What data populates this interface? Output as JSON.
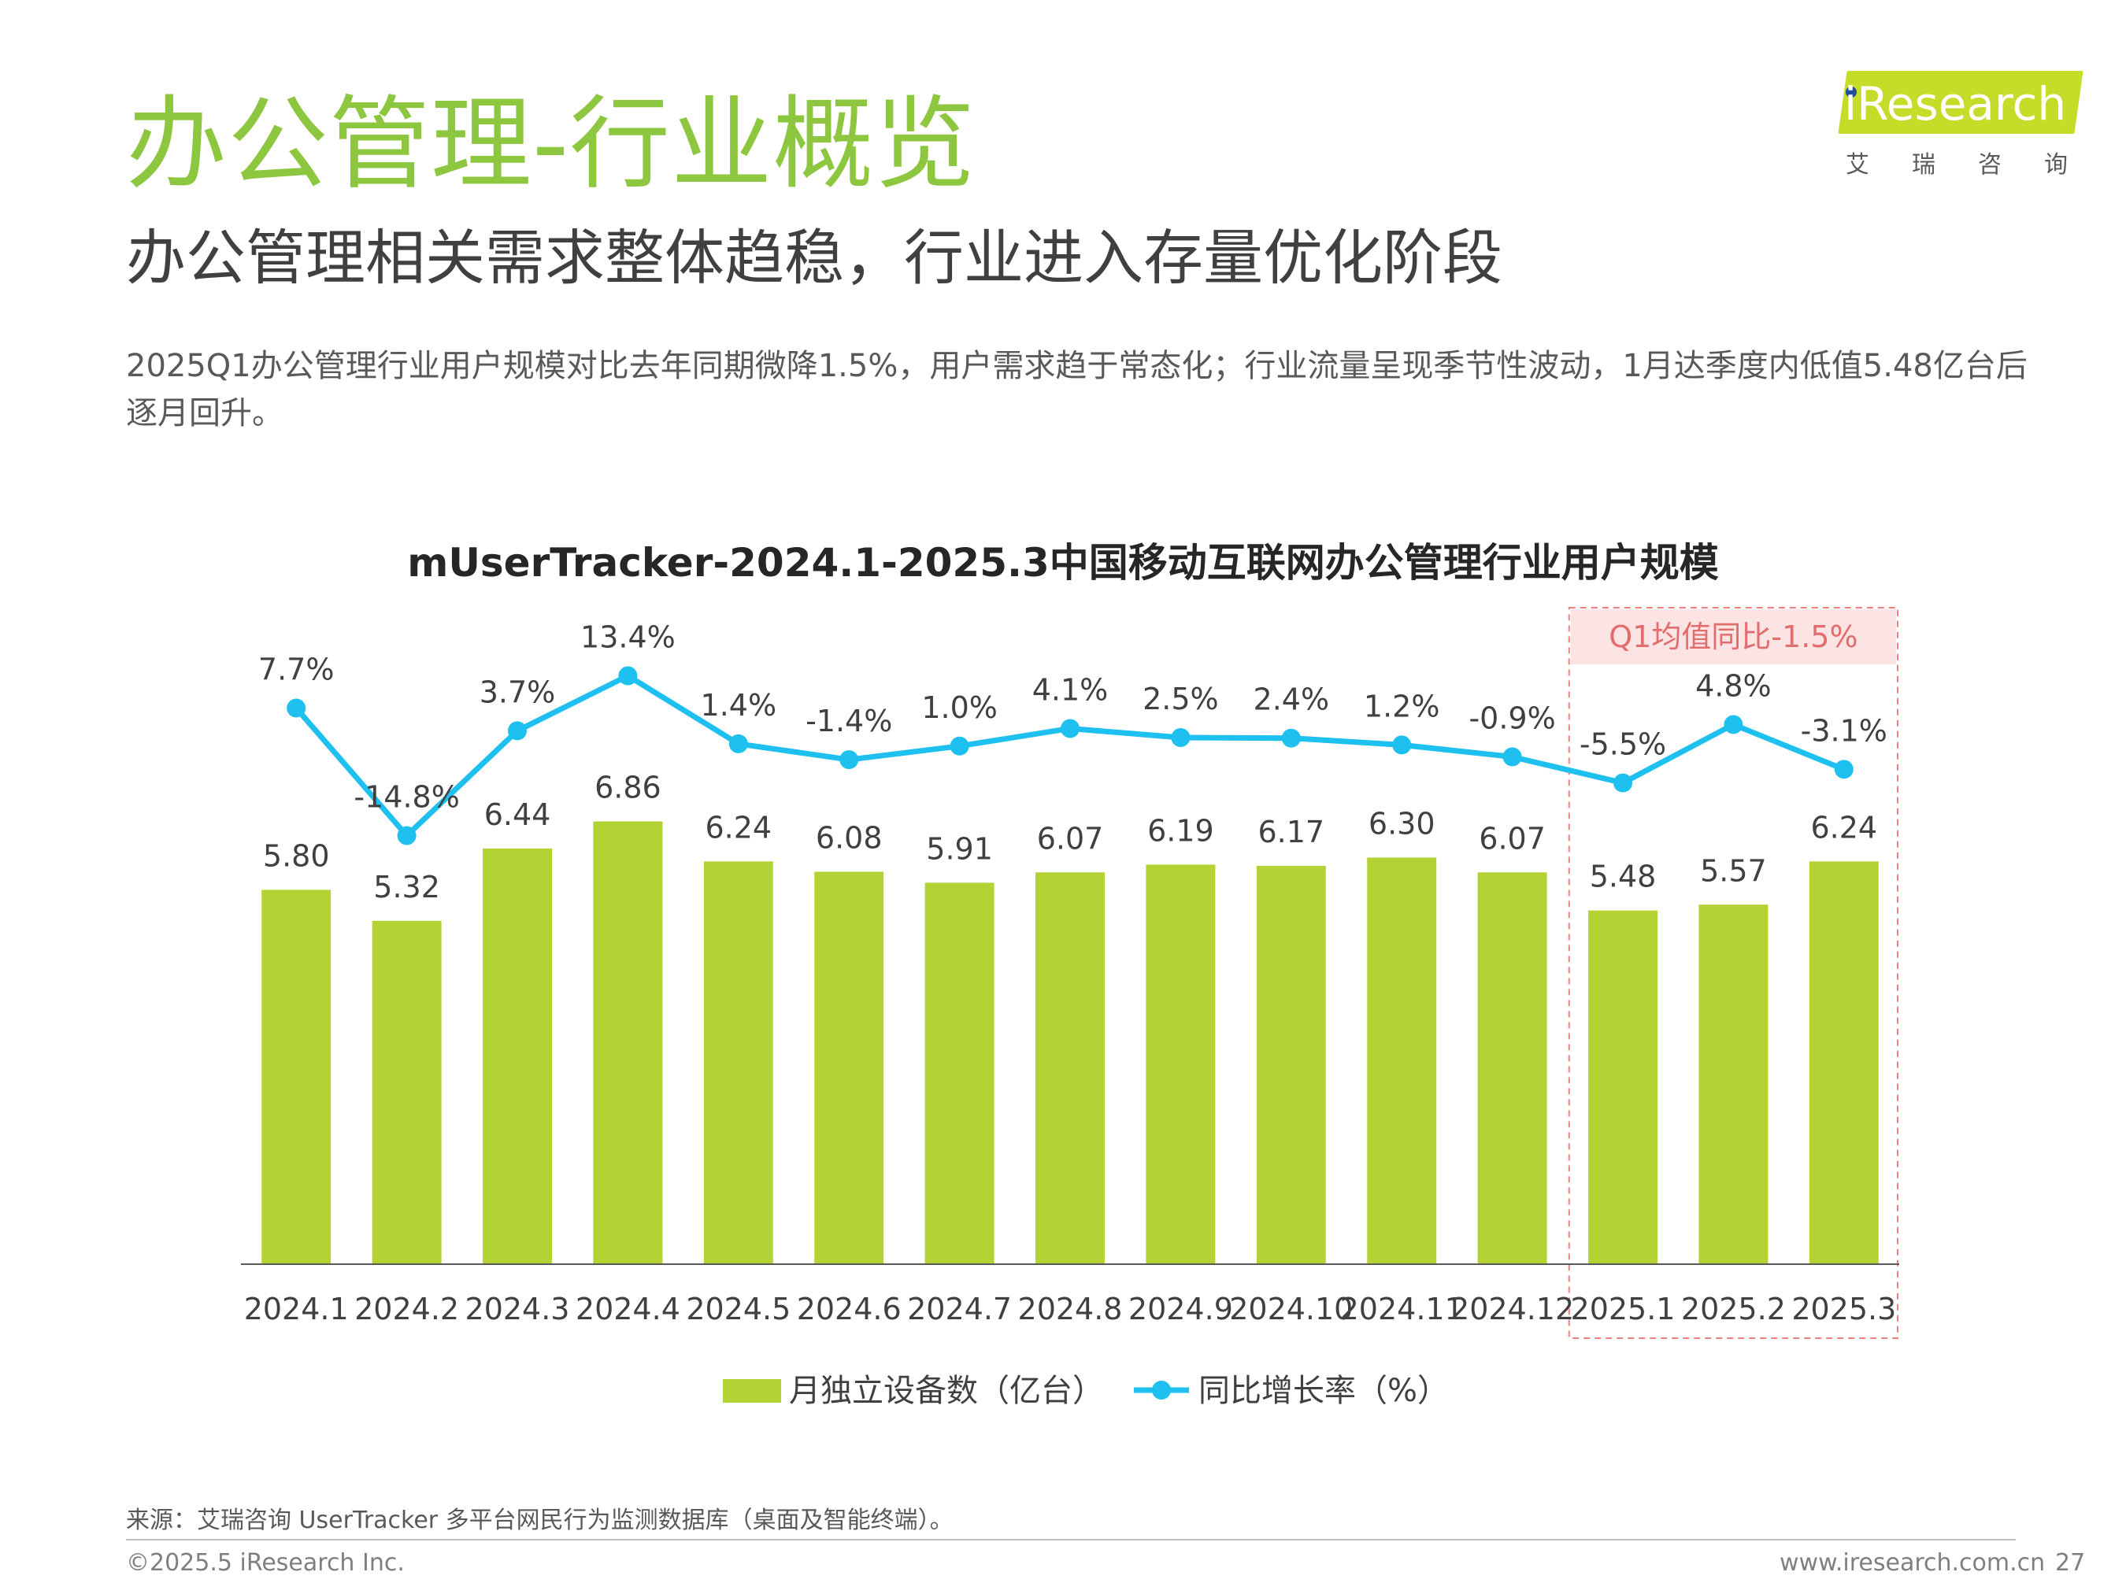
{
  "header": {
    "title": "办公管理-行业概览",
    "subtitle": "办公管理相关需求整体趋稳，行业进入存量优化阶段",
    "summary": "2025Q1办公管理行业用户规模对比去年同期微降1.5%，用户需求趋于常态化；行业流量呈现季节性波动，1月达季度内低值5.48亿台后逐月回升。"
  },
  "logo": {
    "brand": "iResearch",
    "chinese": "艾瑞咨询"
  },
  "chart_data": {
    "type": "bar",
    "title": "mUserTracker-2024.1-2025.3中国移动互联网办公管理行业用户规模",
    "categories": [
      "2024.1",
      "2024.2",
      "2024.3",
      "2024.4",
      "2024.5",
      "2024.6",
      "2024.7",
      "2024.8",
      "2024.9",
      "2024.10",
      "2024.11",
      "2024.12",
      "2025.1",
      "2025.2",
      "2025.3"
    ],
    "series": [
      {
        "name": "月独立设备数（亿台）",
        "type": "bar",
        "color": "#b3d335",
        "values": [
          5.8,
          5.32,
          6.44,
          6.86,
          6.24,
          6.08,
          5.91,
          6.07,
          6.19,
          6.17,
          6.3,
          6.07,
          5.48,
          5.57,
          6.24
        ],
        "labels": [
          "5.80",
          "5.32",
          "6.44",
          "6.86",
          "6.24",
          "6.08",
          "5.91",
          "6.07",
          "6.19",
          "6.17",
          "6.30",
          "6.07",
          "5.48",
          "5.57",
          "6.24"
        ]
      },
      {
        "name": "同比增长率（%）",
        "type": "line",
        "color": "#1ec0ef",
        "values": [
          7.7,
          -14.8,
          3.7,
          13.4,
          1.4,
          -1.4,
          1.0,
          4.1,
          2.5,
          2.4,
          1.2,
          -0.9,
          -5.5,
          4.8,
          -3.1
        ],
        "labels": [
          "7.7%",
          "-14.8%",
          "3.7%",
          "13.4%",
          "1.4%",
          "-1.4%",
          "1.0%",
          "4.1%",
          "2.5%",
          "2.4%",
          "1.2%",
          "-0.9%",
          "-5.5%",
          "4.8%",
          "-3.1%"
        ]
      }
    ],
    "highlight": {
      "label": "Q1均值同比-1.5%",
      "categories": [
        "2025.1",
        "2025.2",
        "2025.3"
      ],
      "color": "#f08080"
    },
    "legend_position": "bottom",
    "grid": false,
    "ylim_bar": [
      0,
      7
    ],
    "ylim_line": [
      -45,
      25
    ]
  },
  "footer": {
    "source": "来源：艾瑞咨询 UserTracker 多平台网民行为监测数据库（桌面及智能终端）。",
    "copyright": "©2025.5 iResearch Inc.",
    "website": "www.iresearch.com.cn",
    "page": "27"
  }
}
